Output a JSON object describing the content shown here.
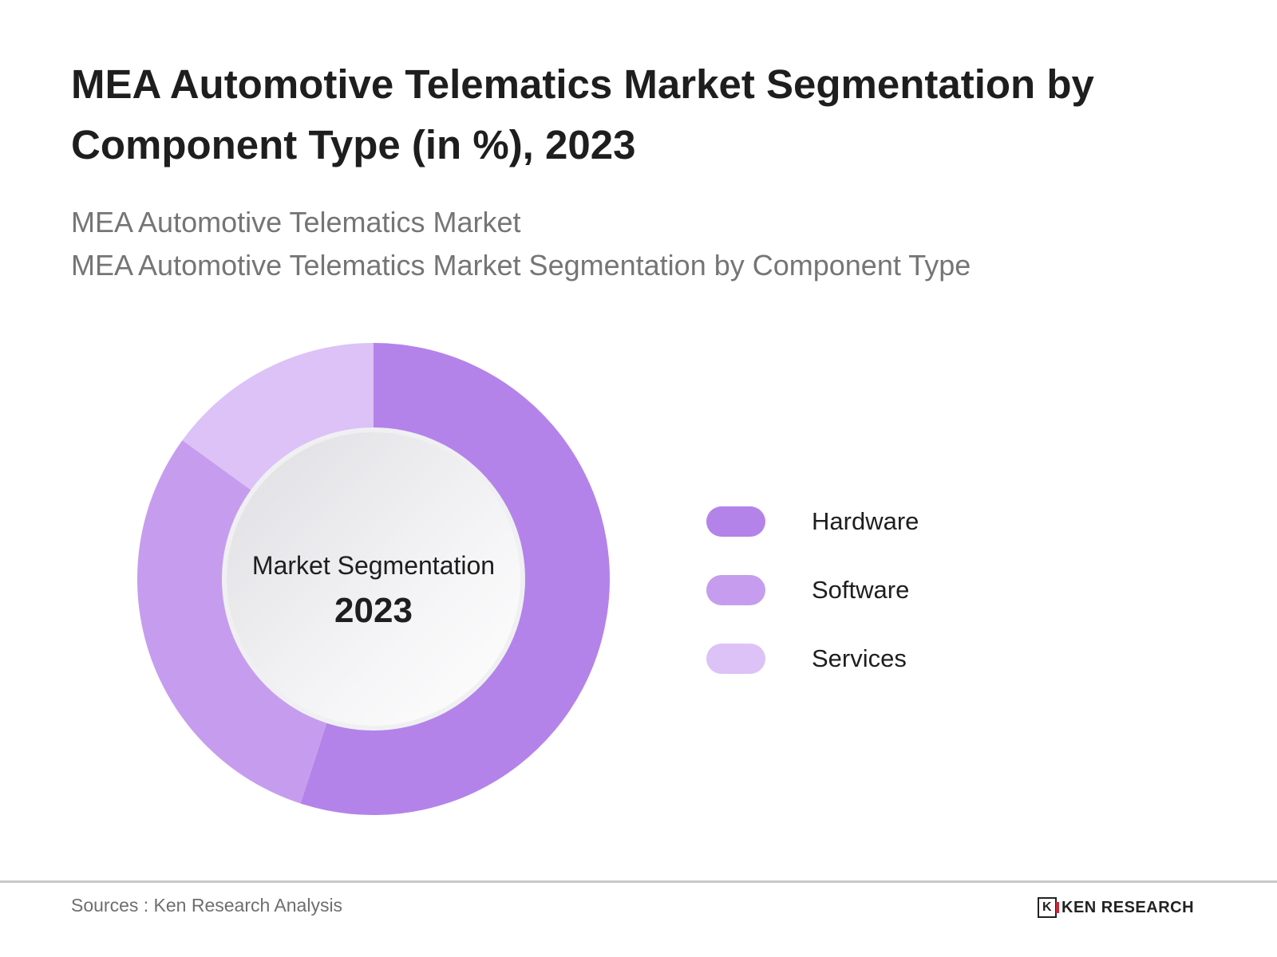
{
  "title": "MEA Automotive Telematics Market Segmentation by Component Type (in %), 2023",
  "subtitle_1": "MEA Automotive Telematics Market",
  "subtitle_2": "MEA Automotive Telematics Market Segmentation by Component Type",
  "source": "Sources : Ken Research Analysis",
  "logo_text": "KEN RESEARCH",
  "chart_data": {
    "type": "pie",
    "variant": "donut",
    "center_label": "Market Segmentation",
    "center_value": "2023",
    "categories": [
      "Hardware",
      "Software",
      "Services"
    ],
    "values": [
      55,
      30,
      15
    ],
    "colors": [
      "#b383ea",
      "#c69dee",
      "#dcc2f6"
    ],
    "legend": "right",
    "data_labels": false
  }
}
